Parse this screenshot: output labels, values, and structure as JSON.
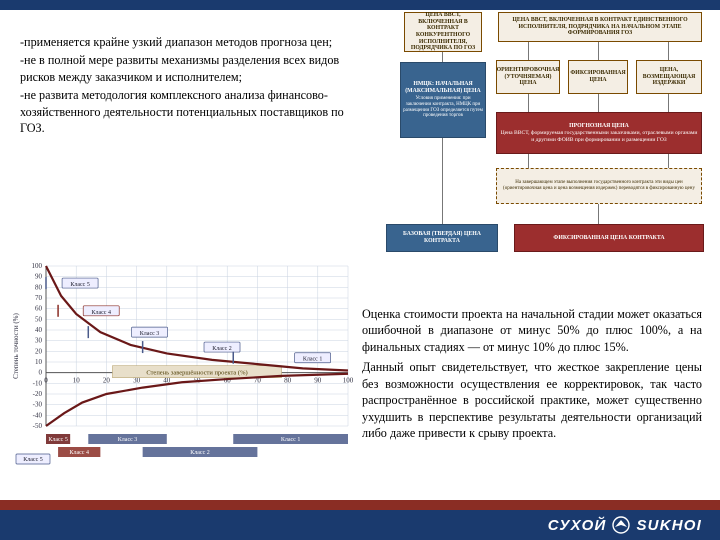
{
  "colors": {
    "navy": "#1a3a6e",
    "brick": "#8a2d24",
    "box_plain_bg": "#f4eee4",
    "box_blue_bg": "#39648f",
    "box_red_bg": "#9c2e2e"
  },
  "text_upper_left": {
    "p1": "-применяется крайне узкий диапазон методов прогноза цен;",
    "p2": "-не в полной мере развиты механизмы разделения всех видов рисков между заказчиком и исполнителем;",
    "p3": "-не развита методология комплексного анализа финансово-хозяйственного деятельности потенциальных поставщиков по ГОЗ."
  },
  "text_lower_right": {
    "p1": "Оценка стоимости проекта на начальной стадии может оказаться ошибочной в диапазоне от минус 50% до плюс 100%, а на финальных стадиях — от минус 10% до плюс 15%.",
    "p2": "Данный опыт свидетельствует, что жесткое закрепление цены без возможности осуществления ее корректировок, так часто распространённое в российской практике, может существенно ухудшить в перспективе результаты деятельности организаций либо даже привести к срыву проекта."
  },
  "flowchart": {
    "top_left": "ЦЕНА ВВСТ, ВКЛЮЧЕННАЯ В КОНТРАКТ КОНКУРЕНТНОГО ИСПОЛНИТЕЛЯ, ПОДРЯДЧИКА ПО ГОЗ",
    "top_right": "ЦЕНА ВВСТ, ВКЛЮЧЕННАЯ В КОНТРАКТ ЕДИНСТВЕННОГО ИСПОЛНИТЕЛЯ, ПОДРЯДЧИКА НА НАЧАЛЬНОМ ЭТАПЕ ФОРМИРОВАНИЯ ГОЗ",
    "row2_a_hdr": "НМЦК: НАЧАЛЬНАЯ (МАКСИМАЛЬНАЯ) ЦЕНА",
    "row2_a_sub": "Условия применения: при заключении контракта, НМЦК при размещении ГОЗ определяется путем проведения торгов",
    "row2_b": "ОРИЕНТИРОВОЧНАЯ (УТОЧНЯЕМАЯ) ЦЕНА",
    "row2_c": "ФИКСИРОВАННАЯ ЦЕНА",
    "row2_d": "ЦЕНА, ВОЗМЕЩАЮЩАЯ ИЗДЕРЖКИ",
    "prog_hdr": "ПРОГНОЗНАЯ ЦЕНА",
    "prog_sub": "Цена ВВСТ, формируемая государственными заказчиками, отраслевыми органами и другими ФОИВ при формировании и размещении ГОЗ",
    "fix_note": "На завершающем этапе выполнения государственного контракта эти виды цен (ориентировочная цена и цена возмещения издержек) переводятся в фиксированную цену",
    "bottom_left": "БАЗОВАЯ (ТВЕРДАЯ) ЦЕНА КОНТРАКТА",
    "bottom_right": "ФИКСИРОВАННАЯ ЦЕНА КОНТРАКТА"
  },
  "chart": {
    "ylabel": "Степень точности (%)",
    "xlabel": "Степень завершённости проекта (%)",
    "x_ticks": [
      0,
      10,
      20,
      30,
      40,
      50,
      60,
      70,
      80,
      90,
      100
    ],
    "y_ticks": [
      -50,
      -40,
      -30,
      -20,
      -10,
      0,
      10,
      20,
      30,
      40,
      50,
      60,
      70,
      80,
      90,
      100
    ],
    "x_range": [
      0,
      100
    ],
    "y_range": [
      -50,
      100
    ],
    "series_upper": [
      [
        0,
        100
      ],
      [
        5,
        72
      ],
      [
        10,
        55
      ],
      [
        18,
        38
      ],
      [
        28,
        26
      ],
      [
        40,
        18
      ],
      [
        55,
        12
      ],
      [
        70,
        8
      ],
      [
        85,
        4
      ],
      [
        100,
        2
      ]
    ],
    "series_lower": [
      [
        0,
        -50
      ],
      [
        6,
        -38
      ],
      [
        12,
        -28
      ],
      [
        20,
        -20
      ],
      [
        32,
        -14
      ],
      [
        45,
        -9
      ],
      [
        60,
        -6
      ],
      [
        78,
        -3
      ],
      [
        100,
        -1
      ]
    ],
    "curve_color": "#6a1818",
    "curve_width": 2.2,
    "class_markers": [
      {
        "label": "Класс 5",
        "band": [
          0,
          8
        ],
        "y": 84,
        "color": "#4a5a8a"
      },
      {
        "label": "Класс 4",
        "band": [
          4,
          18
        ],
        "y": 58,
        "color": "#8a2d24"
      },
      {
        "label": "Класс 3",
        "band": [
          14,
          40
        ],
        "y": 38,
        "color": "#4a5a8a"
      },
      {
        "label": "Класс 2",
        "band": [
          32,
          70
        ],
        "y": 24,
        "color": "#4a5a8a"
      },
      {
        "label": "Класс 1",
        "band": [
          62,
          100
        ],
        "y": 14,
        "color": "#4a5a8a"
      }
    ],
    "bottom_bars": [
      {
        "label": "Класс 5",
        "x": [
          0,
          8
        ],
        "color": "#6a1818"
      },
      {
        "label": "Класс 4",
        "x": [
          4,
          18
        ],
        "color": "#8a2d24"
      },
      {
        "label": "Класс 3",
        "x": [
          14,
          40
        ],
        "color": "#4a5a8a"
      },
      {
        "label": "Класс 2",
        "x": [
          32,
          70
        ],
        "color": "#4a5a8a"
      },
      {
        "label": "Класс 1",
        "x": [
          62,
          100
        ],
        "color": "#4a5a8a"
      }
    ],
    "grid_color": "#c9d3e0",
    "axis_color": "#555",
    "bg": "#ffffff",
    "font_size_axis": 7
  },
  "footer": {
    "brand_ru": "СУХОЙ",
    "brand_en": "SUKHOI"
  }
}
